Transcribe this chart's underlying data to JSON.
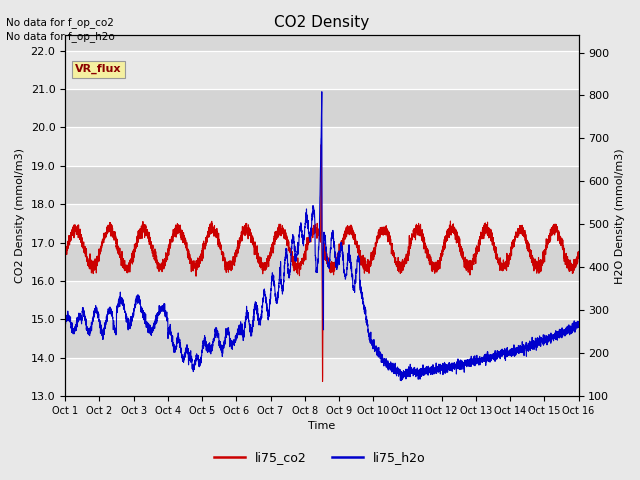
{
  "title": "CO2 Density",
  "xlabel": "Time",
  "ylabel_left": "CO2 Density (mmol/m3)",
  "ylabel_right": "H2O Density (mmol/m3)",
  "ylim_left": [
    13.0,
    22.4
  ],
  "ylim_right": [
    100,
    940
  ],
  "yticks_left": [
    13.0,
    14.0,
    15.0,
    16.0,
    17.0,
    18.0,
    19.0,
    20.0,
    21.0,
    22.0
  ],
  "yticks_right": [
    100,
    200,
    300,
    400,
    500,
    600,
    700,
    800,
    900
  ],
  "xtick_labels": [
    "Oct 1",
    "Oct 2",
    "Oct 3",
    "Oct 4",
    "Oct 5",
    "Oct 6",
    "Oct 7",
    "Oct 8",
    "Oct 9",
    "Oct 10",
    "Oct 11",
    "Oct 12",
    "Oct 13",
    "Oct 14",
    "Oct 15",
    "Oct 16"
  ],
  "top_left_text1": "No data for f_op_co2",
  "top_left_text2": "No data for f_op_h2o",
  "vr_flux_label": "VR_flux",
  "legend_entries": [
    "li75_co2",
    "li75_h2o"
  ],
  "legend_colors": [
    "#cc0000",
    "#0000cc"
  ],
  "background_color": "#e8e8e8",
  "plot_bg_color": "#d8d8d8",
  "grid_color": "#ffffff",
  "co2_color": "#cc0000",
  "h2o_color": "#0000cc"
}
